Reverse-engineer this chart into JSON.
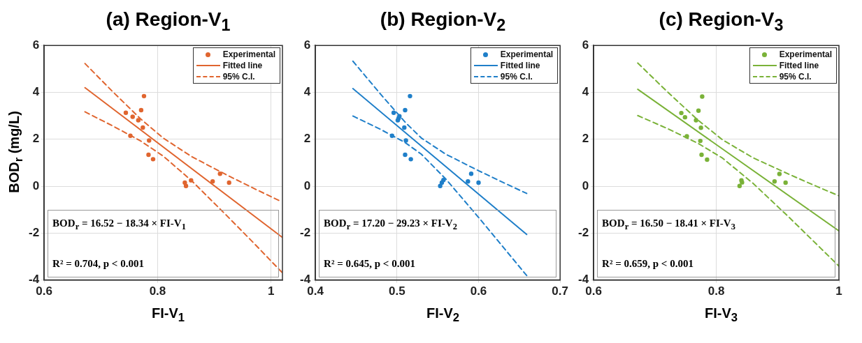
{
  "chart_data": [
    {
      "type": "scatter",
      "title": "(a) Region-V$_{1}$",
      "xlabel": "FI-V$_{1}$",
      "ylabel": "BOD$_{r}$ (mg/L)",
      "xlim": [
        0.6,
        1.02
      ],
      "xticks": [
        0.6,
        0.8,
        1
      ],
      "ylim": [
        -4,
        6
      ],
      "yticks": [
        -4,
        -2,
        0,
        2,
        4,
        6
      ],
      "grid": true,
      "legend": "top right",
      "annotations": [
        "BOD$_{r}$ = 16.52 − 18.34 × FI-V$_{1}$",
        "R² = 0.704, p < 0.001"
      ],
      "series": [
        {
          "name": "Experimental",
          "type": "scatter",
          "marker": "circle",
          "color": "#e0652f",
          "x": [
            0.776,
            0.744,
            0.771,
            0.756,
            0.766,
            0.774,
            0.752,
            0.785,
            0.784,
            0.792,
            0.848,
            0.85,
            0.859,
            0.897,
            0.91,
            0.926
          ],
          "values": [
            3.84,
            3.13,
            3.24,
            2.96,
            2.81,
            2.5,
            2.15,
            1.95,
            1.34,
            1.15,
            0.15,
            0.01,
            0.25,
            0.2,
            0.53,
            0.15
          ]
        },
        {
          "name": "Fitted line",
          "type": "line",
          "line_style": "solid",
          "color": "#e0652f",
          "x": [
            0.672,
            1.019
          ],
          "values": [
            4.2,
            -2.17
          ]
        },
        {
          "name": "95% C.I.",
          "type": "line",
          "line_style": "dashed",
          "color": "#e0652f",
          "x": [
            0.672,
            0.72,
            0.77,
            0.81,
            0.86,
            0.92,
            0.97,
            1.019
          ],
          "values": [
            5.23,
            4.05,
            2.87,
            2.05,
            1.26,
            0.5,
            -0.1,
            -0.67
          ]
        },
        {
          "type": "line",
          "line_style": "dashed",
          "color": "#e0652f",
          "x": [
            0.672,
            0.72,
            0.77,
            0.81,
            0.86,
            0.92,
            0.97,
            1.019
          ],
          "values": [
            3.17,
            2.58,
            1.93,
            1.28,
            0.23,
            -1.21,
            -2.44,
            -3.67
          ]
        }
      ]
    },
    {
      "type": "scatter",
      "title": "(b) Region-V$_{2}$",
      "xlabel": "FI-V$_{2}$",
      "xlim": [
        0.4,
        0.7
      ],
      "xticks": [
        0.4,
        0.5,
        0.6,
        0.7
      ],
      "ylim": [
        -4,
        6
      ],
      "yticks": [
        -4,
        -2,
        0,
        2,
        4,
        6
      ],
      "grid": true,
      "legend": "top right",
      "annotations": [
        "BOD$_{r}$ = 17.20 − 29.23 × FI-V$_{2}$",
        "R² = 0.645, p < 0.001"
      ],
      "series": [
        {
          "name": "Experimental",
          "type": "scatter",
          "marker": "circle",
          "color": "#1f7fc9",
          "x": [
            0.516,
            0.496,
            0.51,
            0.503,
            0.502,
            0.501,
            0.509,
            0.494,
            0.511,
            0.51,
            0.517,
            0.553,
            0.555,
            0.557,
            0.587,
            0.591,
            0.6
          ],
          "values": [
            3.84,
            3.13,
            3.24,
            2.98,
            2.89,
            2.81,
            2.5,
            2.15,
            1.95,
            1.34,
            1.15,
            0.01,
            0.15,
            0.26,
            0.2,
            0.53,
            0.15
          ]
        },
        {
          "name": "Fitted line",
          "type": "line",
          "line_style": "solid",
          "color": "#1f7fc9",
          "x": [
            0.446,
            0.659
          ],
          "values": [
            4.16,
            -2.06
          ]
        },
        {
          "name": "95% C.I.",
          "type": "line",
          "line_style": "dashed",
          "color": "#1f7fc9",
          "x": [
            0.446,
            0.48,
            0.51,
            0.53,
            0.56,
            0.6,
            0.63,
            0.659
          ],
          "values": [
            5.33,
            3.92,
            2.73,
            2.05,
            1.36,
            0.66,
            0.16,
            -0.31
          ]
        },
        {
          "type": "line",
          "line_style": "dashed",
          "color": "#1f7fc9",
          "x": [
            0.446,
            0.48,
            0.51,
            0.53,
            0.56,
            0.6,
            0.63,
            0.659
          ],
          "values": [
            2.99,
            2.42,
            1.86,
            1.36,
            0.3,
            -1.33,
            -2.59,
            -3.81
          ]
        }
      ]
    },
    {
      "type": "scatter",
      "title": "(c) Region-V$_{3}$",
      "xlabel": "FI-V$_{3}$",
      "xlim": [
        0.6,
        1
      ],
      "xticks": [
        0.6,
        0.8,
        1
      ],
      "ylim": [
        -4,
        6
      ],
      "yticks": [
        -4,
        -2,
        0,
        2,
        4,
        6
      ],
      "grid": true,
      "legend": "top right",
      "annotations": [
        "BOD$_{r}$ = 16.50 − 18.41 × FI-V$_{3}$",
        "R² = 0.659, p < 0.001"
      ],
      "series": [
        {
          "name": "Experimental",
          "type": "scatter",
          "marker": "circle",
          "color": "#7ab238",
          "x": [
            0.777,
            0.743,
            0.771,
            0.749,
            0.767,
            0.775,
            0.752,
            0.774,
            0.776,
            0.785,
            0.838,
            0.842,
            0.841,
            0.895,
            0.903,
            0.913
          ],
          "values": [
            3.82,
            3.12,
            3.22,
            2.94,
            2.81,
            2.49,
            2.13,
            1.93,
            1.34,
            1.13,
            0.01,
            0.16,
            0.25,
            0.2,
            0.52,
            0.15
          ]
        },
        {
          "name": "Fitted line",
          "type": "line",
          "line_style": "solid",
          "color": "#7ab238",
          "x": [
            0.672,
            1
          ],
          "values": [
            4.13,
            -1.91
          ]
        },
        {
          "name": "95% C.I.",
          "type": "line",
          "line_style": "dashed",
          "color": "#7ab238",
          "x": [
            0.672,
            0.72,
            0.77,
            0.81,
            0.86,
            0.92,
            0.97,
            1
          ],
          "values": [
            5.25,
            4.03,
            2.82,
            1.98,
            1.21,
            0.49,
            -0.08,
            -0.41
          ]
        },
        {
          "type": "line",
          "line_style": "dashed",
          "color": "#7ab238",
          "x": [
            0.672,
            0.72,
            0.77,
            0.81,
            0.86,
            0.92,
            0.97,
            1
          ],
          "values": [
            3.01,
            2.46,
            1.83,
            1.2,
            0.12,
            -1.36,
            -2.64,
            -3.41
          ]
        }
      ]
    }
  ]
}
